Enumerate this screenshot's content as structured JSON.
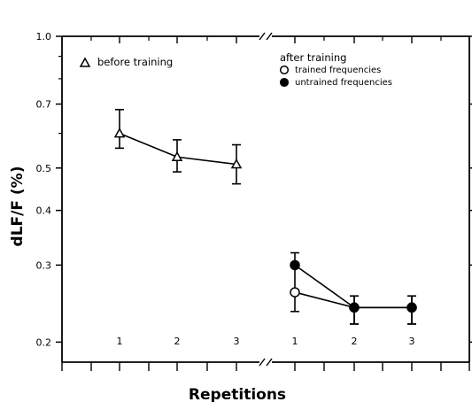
{
  "chart_data": {
    "type": "line",
    "xlabel": "Repetitions",
    "ylabel": "dLF/F (%)",
    "y_scale": "log",
    "ylim": [
      0.18,
      1.0
    ],
    "y_ticks": [
      0.2,
      0.3,
      0.4,
      0.5,
      0.7,
      1.0
    ],
    "y_tick_labels": [
      "0.2",
      "0.3",
      "0.4",
      "0.5",
      "0.7",
      "1.0"
    ],
    "x_tick_labels": [
      "1",
      "2",
      "3",
      "1",
      "2",
      "3"
    ],
    "axis_break_marker": "//",
    "legend": {
      "before_title": "before training",
      "after_title": "after training",
      "trained_label": "trained frequencies",
      "untrained_label": "untrained frequencies"
    },
    "series": [
      {
        "name": "before training",
        "marker": "open-triangle",
        "x": [
          1,
          2,
          3
        ],
        "y": [
          0.6,
          0.53,
          0.51
        ],
        "err_low": [
          0.555,
          0.49,
          0.46
        ],
        "err_high": [
          0.68,
          0.58,
          0.565
        ]
      },
      {
        "name": "trained frequencies",
        "marker": "open-circle",
        "x": [
          1,
          2,
          3
        ],
        "y": [
          0.26,
          0.24,
          0.24
        ],
        "err_low": [
          0.235,
          0.22,
          0.22
        ],
        "err_high": [
          0.3,
          0.255,
          0.255
        ]
      },
      {
        "name": "untrained frequencies",
        "marker": "filled-circle",
        "x": [
          1,
          2,
          3
        ],
        "y": [
          0.3,
          0.24,
          0.24
        ],
        "err_low": [
          0.3,
          0.22,
          0.22
        ],
        "err_high": [
          0.32,
          0.255,
          0.255
        ]
      }
    ]
  }
}
